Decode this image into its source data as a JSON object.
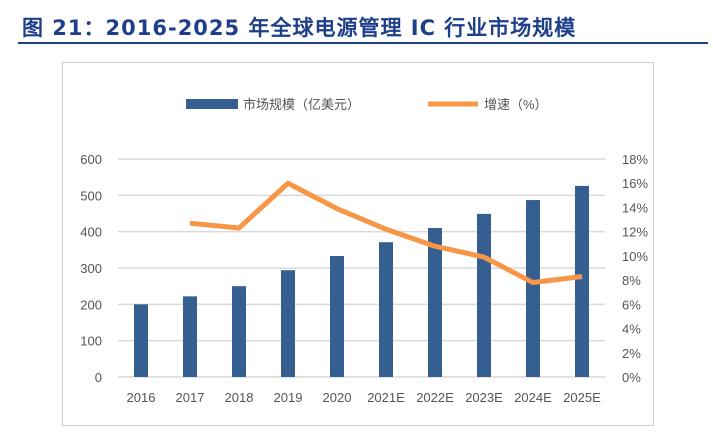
{
  "title": "图 21：2016-2025 年全球电源管理 IC 行业市场规模",
  "chart_data": {
    "type": "bar+line",
    "categories": [
      "2016",
      "2017",
      "2018",
      "2019",
      "2020",
      "2021E",
      "2022E",
      "2023E",
      "2024E",
      "2025E"
    ],
    "series": [
      {
        "name": "市场规模（亿美元）",
        "type": "bar",
        "axis": "left",
        "color": "#365f91",
        "values": [
          200,
          222,
          250,
          294,
          333,
          371,
          410,
          449,
          487,
          526
        ]
      },
      {
        "name": "增速（%）",
        "type": "line",
        "axis": "right",
        "color": "#f79646",
        "values": [
          null,
          12.7,
          12.3,
          16.0,
          13.9,
          12.2,
          10.8,
          9.9,
          7.8,
          8.3
        ]
      }
    ],
    "ylim": [
      0,
      600
    ],
    "yticks": [
      "0",
      "100",
      "200",
      "300",
      "400",
      "500",
      "600"
    ],
    "y2lim": [
      0,
      18
    ],
    "y2ticks": [
      "0%",
      "2%",
      "4%",
      "6%",
      "8%",
      "10%",
      "12%",
      "14%",
      "16%",
      "18%"
    ],
    "grid": true,
    "legend": "top"
  }
}
